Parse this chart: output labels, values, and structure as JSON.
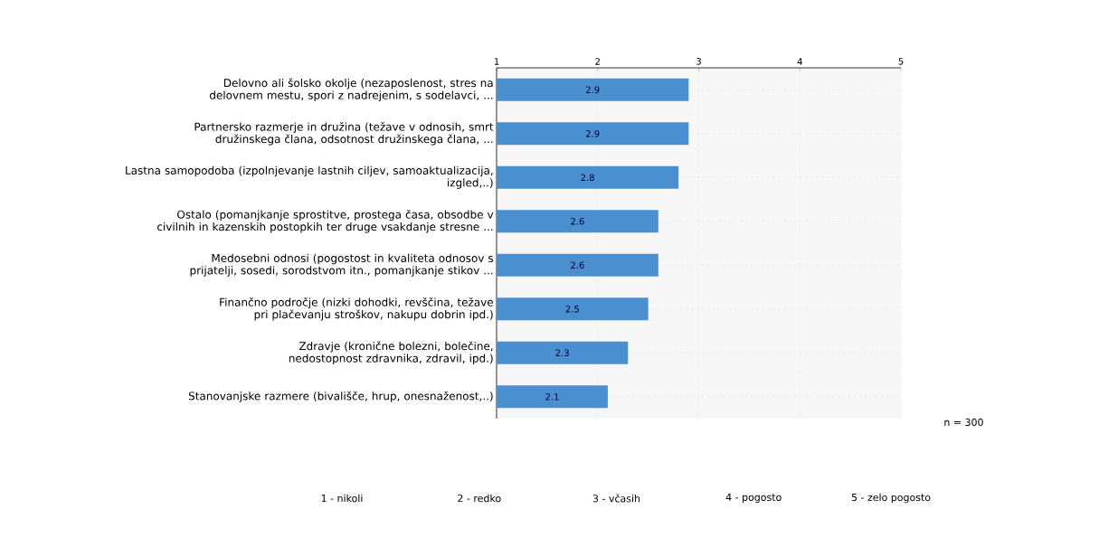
{
  "chart_data": {
    "type": "bar",
    "orientation": "horizontal",
    "categories": [
      "Delovno ali šolsko okolje  (nezaposlenost, stres na delovnem  mestu, spori z nadrejenim, s sodelavci, ...",
      "Partnersko razmerje in družina (težave v odnosih, smrt družinskega  člana, odsotnost družinskega člana, ...",
      "Lastna samopodoba  (izpolnjevanje lastnih ciljev, samoaktualizacija, izgled,..)",
      "Ostalo  (pomanjkanje sprostitve, prostega časa,  obsodbe v civilnih in kazenskih postopkih ter druge vsakdanje stresne ...",
      "Medosebni odnosi  (pogostost in kvaliteta odnosov s prijatelji, sosedi, sorodstvom itn., pomanjkanje stikov ...",
      "Finančno področje (nizki dohodki, revščina, težave pri plačevanju stroškov, nakupu dobrin ipd.)",
      "Zdravje  (kronične bolezni, bolečine, nedostopnost zdravnika, zdravil, ipd.)",
      "Stanovanjske razmere  (bivališče, hrup, onesnaženost,..)"
    ],
    "values": [
      2.9,
      2.9,
      2.8,
      2.6,
      2.6,
      2.5,
      2.3,
      2.1
    ],
    "color": "#4a90d0",
    "xlim": [
      1,
      5
    ],
    "xticks": [
      1,
      2,
      3,
      4,
      5
    ],
    "grid": true,
    "data_labels": true,
    "annotations": [
      "n = 300",
      "1 - nikoli",
      "2 - redko",
      "3 - včasih",
      "4 - pogosto",
      "5 - zelo pogosto"
    ]
  }
}
